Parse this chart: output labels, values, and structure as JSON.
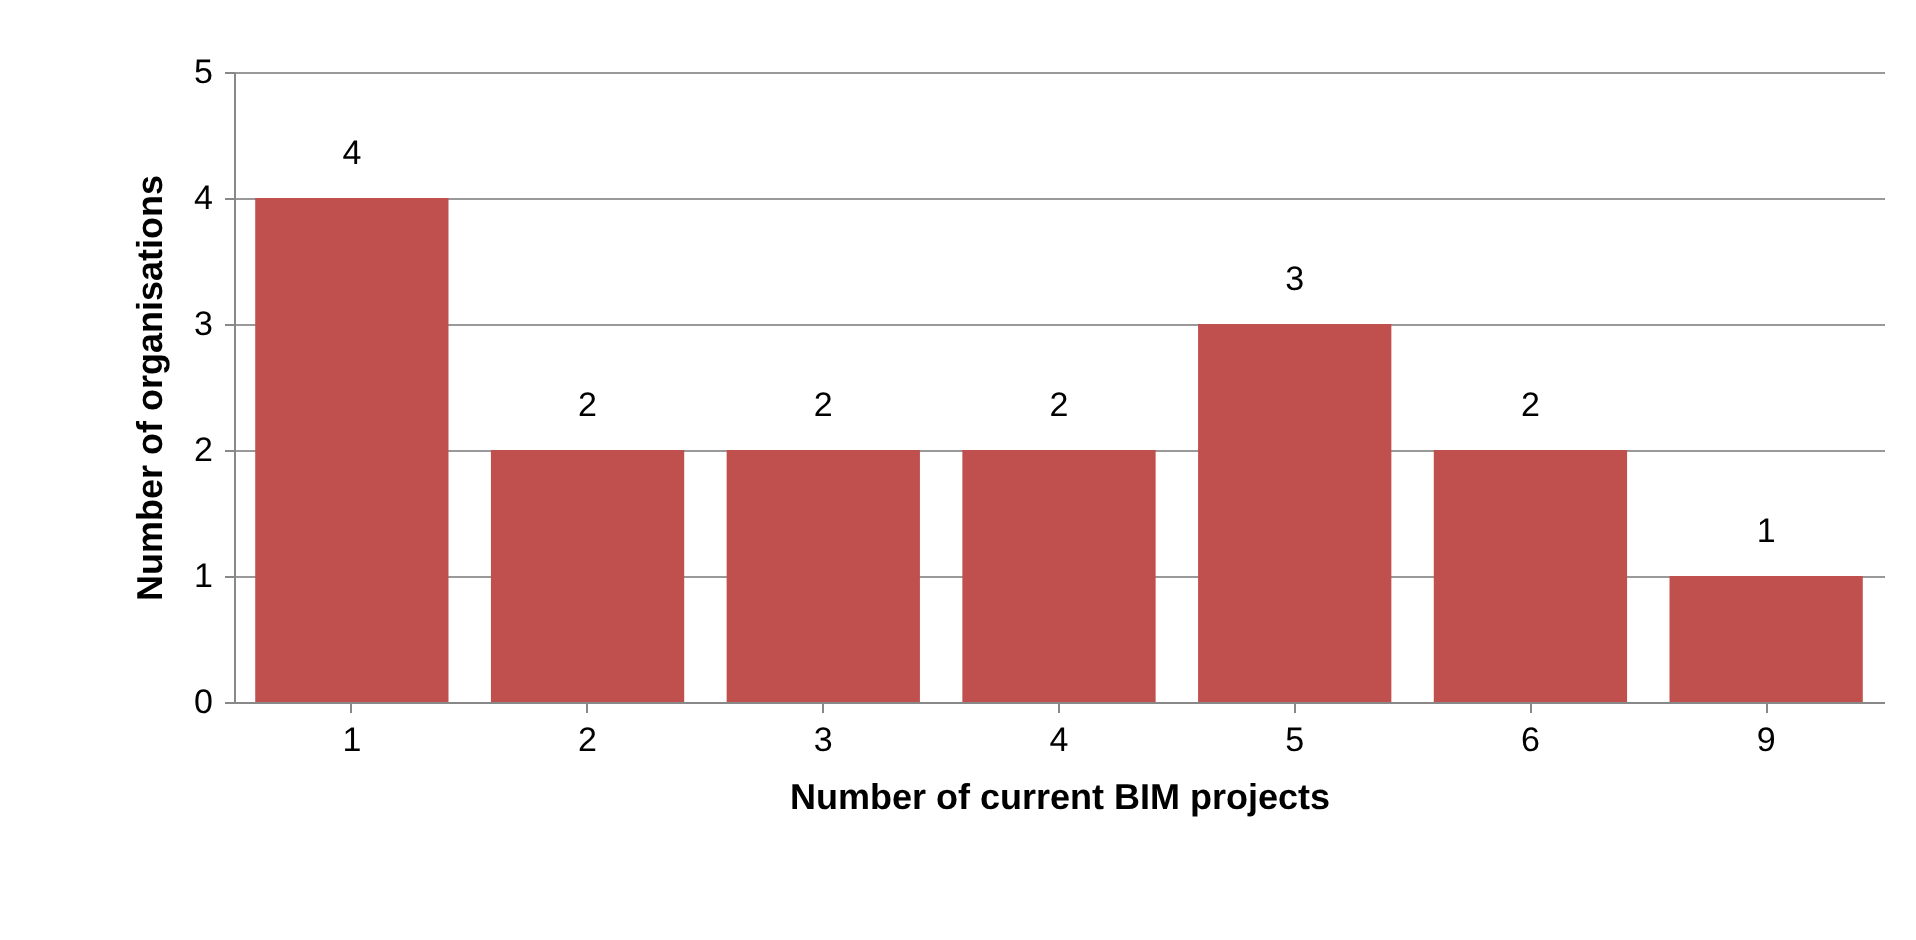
{
  "chart_data": {
    "type": "bar",
    "xlabel": "Number of current BIM projects",
    "ylabel": "Number of organisations",
    "categories": [
      "1",
      "2",
      "3",
      "4",
      "5",
      "6",
      "9"
    ],
    "values": [
      4,
      2,
      2,
      2,
      3,
      2,
      1
    ],
    "color": "#c0504d",
    "ylim": [
      0,
      5
    ],
    "yticks": [
      0,
      1,
      2,
      3,
      4,
      5
    ],
    "grid": "y",
    "data_labels": true
  }
}
